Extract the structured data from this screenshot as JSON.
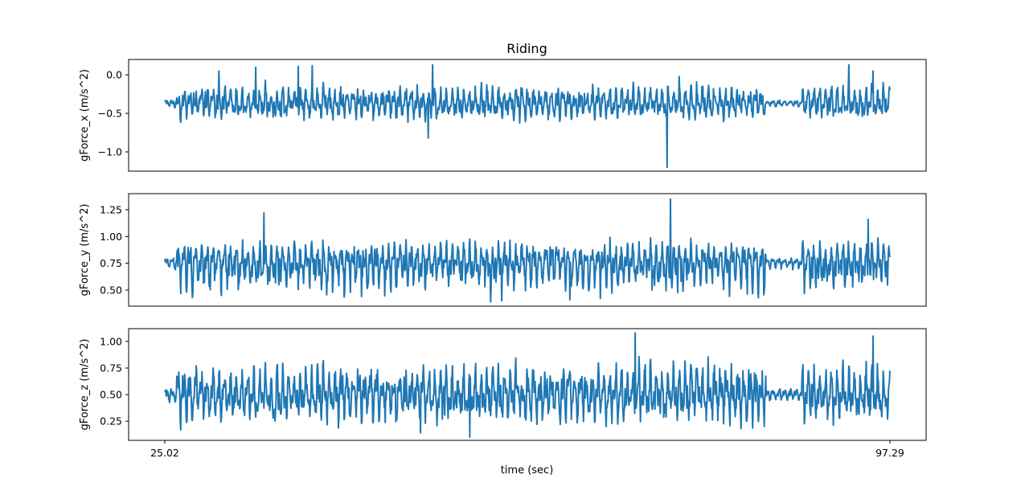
{
  "chart_data": {
    "type": "line",
    "title": "Riding",
    "xlabel": "time (sec)",
    "x_range": [
      25.02,
      97.29
    ],
    "xticks": [
      "25.02",
      "97.29"
    ],
    "series_color": "#1f77b4",
    "subplots": [
      {
        "ylabel": "gForce_x  (m/s^2)",
        "ylim": [
          -1.25,
          0.2
        ],
        "yticks": [
          0.0,
          -0.5,
          -1.0
        ],
        "ytick_labels": [
          "0.0",
          "−0.5",
          "−1.0"
        ],
        "baseline": -0.37,
        "amplitude_upper": 0.25,
        "amplitude_lower": 0.22,
        "spikes": [
          {
            "t": 30.4,
            "y": 0.05
          },
          {
            "t": 34.1,
            "y": 0.1
          },
          {
            "t": 38.3,
            "y": 0.11
          },
          {
            "t": 39.7,
            "y": 0.12
          },
          {
            "t": 51.7,
            "y": 0.13
          },
          {
            "t": 51.3,
            "y": -0.82
          },
          {
            "t": 75.1,
            "y": -1.2
          },
          {
            "t": 76.3,
            "y": -0.02
          },
          {
            "t": 93.2,
            "y": 0.13
          },
          {
            "t": 95.6,
            "y": 0.05
          }
        ],
        "quiet": [
          [
            85.0,
            88.5
          ]
        ]
      },
      {
        "ylabel": "gForce_y  (m/s^2)",
        "ylim": [
          0.35,
          1.4
        ],
        "yticks": [
          1.25,
          1.0,
          0.75,
          0.5
        ],
        "ytick_labels": [
          "1.25",
          "1.00",
          "0.75",
          "0.50"
        ],
        "baseline": 0.76,
        "amplitude_upper": 0.2,
        "amplitude_lower": 0.3,
        "spikes": [
          {
            "t": 34.9,
            "y": 1.22
          },
          {
            "t": 75.4,
            "y": 1.35
          },
          {
            "t": 95.1,
            "y": 1.16
          },
          {
            "t": 57.5,
            "y": 0.39
          },
          {
            "t": 58.6,
            "y": 0.4
          },
          {
            "t": 65.4,
            "y": 0.41
          }
        ],
        "quiet": [
          [
            85.0,
            88.5
          ]
        ]
      },
      {
        "ylabel": "gForce_z  (m/s^2)",
        "ylim": [
          0.07,
          1.12
        ],
        "yticks": [
          1.0,
          0.75,
          0.5,
          0.25
        ],
        "ytick_labels": [
          "1.00",
          "0.75",
          "0.50",
          "0.25"
        ],
        "baseline": 0.5,
        "amplitude_upper": 0.3,
        "amplitude_lower": 0.28,
        "spikes": [
          {
            "t": 71.9,
            "y": 1.08
          },
          {
            "t": 95.6,
            "y": 1.05
          },
          {
            "t": 55.4,
            "y": 0.1
          },
          {
            "t": 50.5,
            "y": 0.14
          }
        ],
        "quiet": [
          [
            85.0,
            88.5
          ]
        ]
      }
    ]
  }
}
